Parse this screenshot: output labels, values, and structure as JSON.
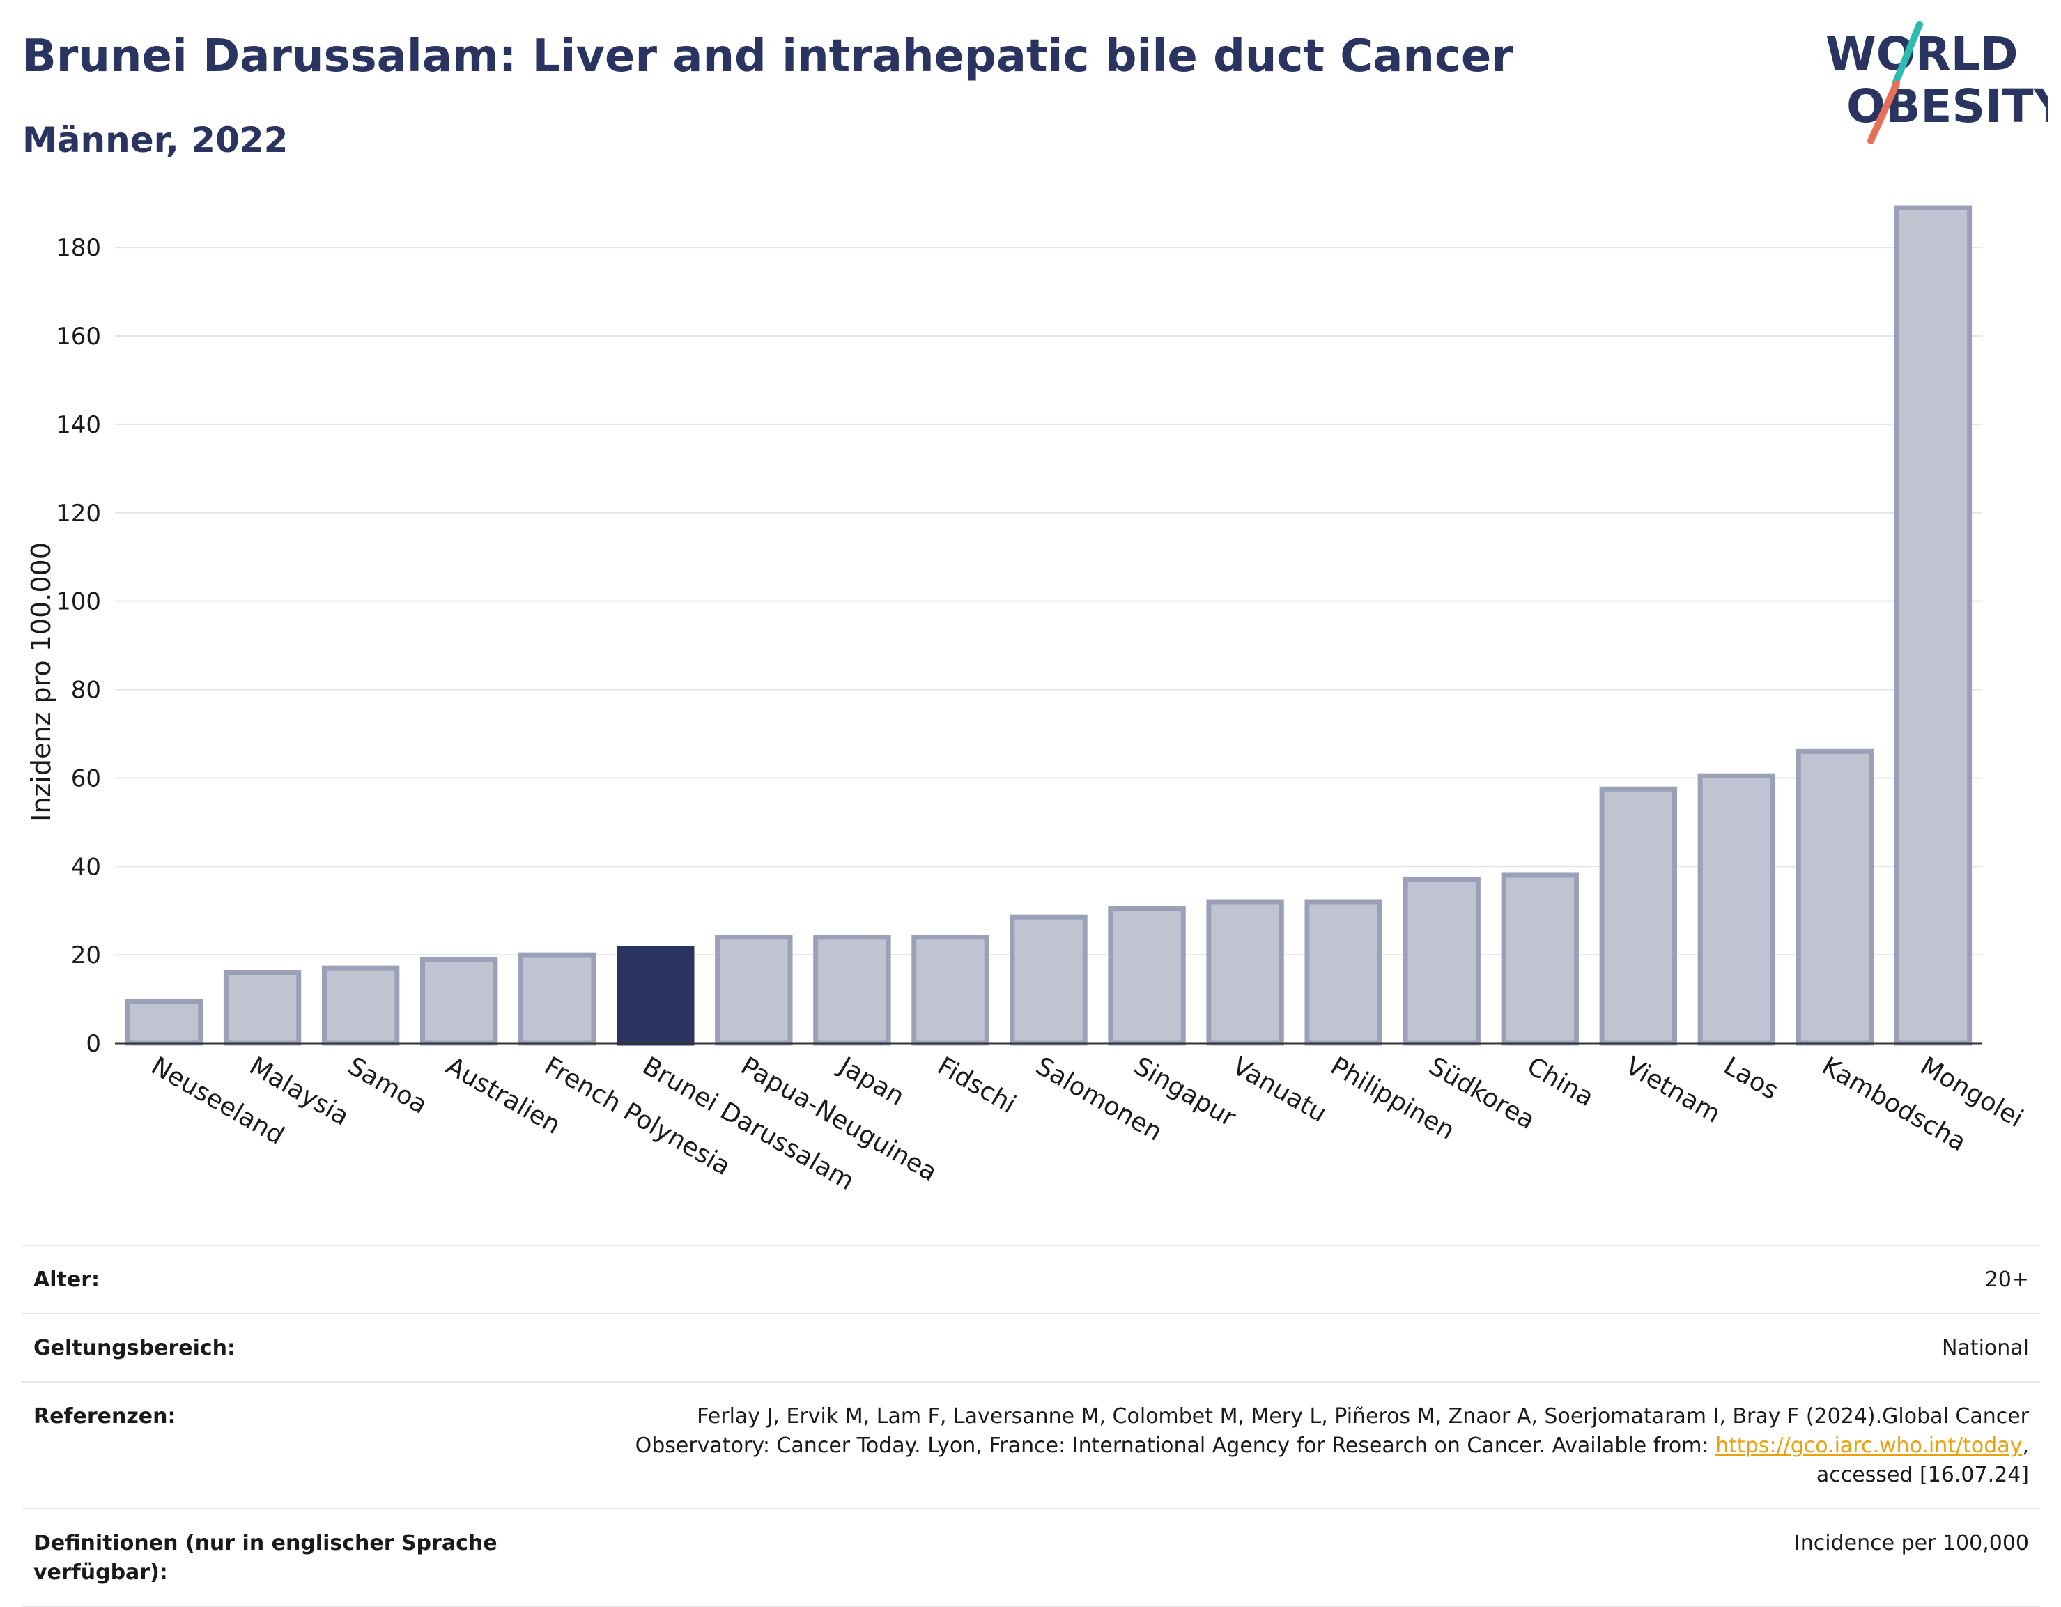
{
  "header": {
    "title": "Brunei Darussalam: Liver and intrahepatic bile duct Cancer",
    "subtitle": "Männer, 2022"
  },
  "logo": {
    "line1": "WORLD",
    "line2": "OBESITY",
    "accent_teal": "#2bbbb0",
    "accent_red": "#e8705a",
    "text_color": "#2a3460"
  },
  "chart_data": {
    "type": "bar",
    "title": "Brunei Darussalam: Liver and intrahepatic bile duct Cancer",
    "subtitle": "Männer, 2022",
    "xlabel": "",
    "ylabel": "Inzidenz pro 100.000",
    "ylim": [
      0,
      195
    ],
    "yticks": [
      0,
      20,
      40,
      60,
      80,
      100,
      120,
      140,
      160,
      180
    ],
    "grid": true,
    "categories": [
      "Neuseeland",
      "Malaysia",
      "Samoa",
      "Australien",
      "French Polynesia",
      "Brunei Darussalam",
      "Papua-Neuguinea",
      "Japan",
      "Fidschi",
      "Salomonen",
      "Singapur",
      "Vanuatu",
      "Philippinen",
      "Südkorea",
      "China",
      "Vietnam",
      "Laos",
      "Kambodscha",
      "Mongolei"
    ],
    "values": [
      9.5,
      16,
      17,
      19,
      20,
      21.5,
      24,
      24,
      24,
      28.5,
      30.5,
      32,
      32,
      37,
      38,
      57.5,
      60.5,
      66,
      189
    ],
    "highlight": "Brunei Darussalam",
    "colors": {
      "bar": "#c0c3d0",
      "bar_border": "#9aa0b8",
      "highlight": "#2a3460"
    }
  },
  "meta": {
    "rows": [
      {
        "label": "Alter:",
        "value": "20+"
      },
      {
        "label": "Geltungsbereich:",
        "value": "National"
      },
      {
        "label": "Referenzen:",
        "value_pre": "Ferlay J, Ervik M, Lam F, Laversanne M, Colombet M, Mery L, Piñeros M, Znaor A, Soerjomataram I, Bray F (2024).Global Cancer Observatory: Cancer Today. Lyon, France: International Agency for Research on Cancer. Available from: ",
        "link": "https://gco.iarc.who.int/today",
        "value_post": ", accessed [16.07.24]"
      },
      {
        "label": "Definitionen (nur in englischer Sprache verfügbar):",
        "value": "Incidence per 100,000"
      }
    ]
  }
}
